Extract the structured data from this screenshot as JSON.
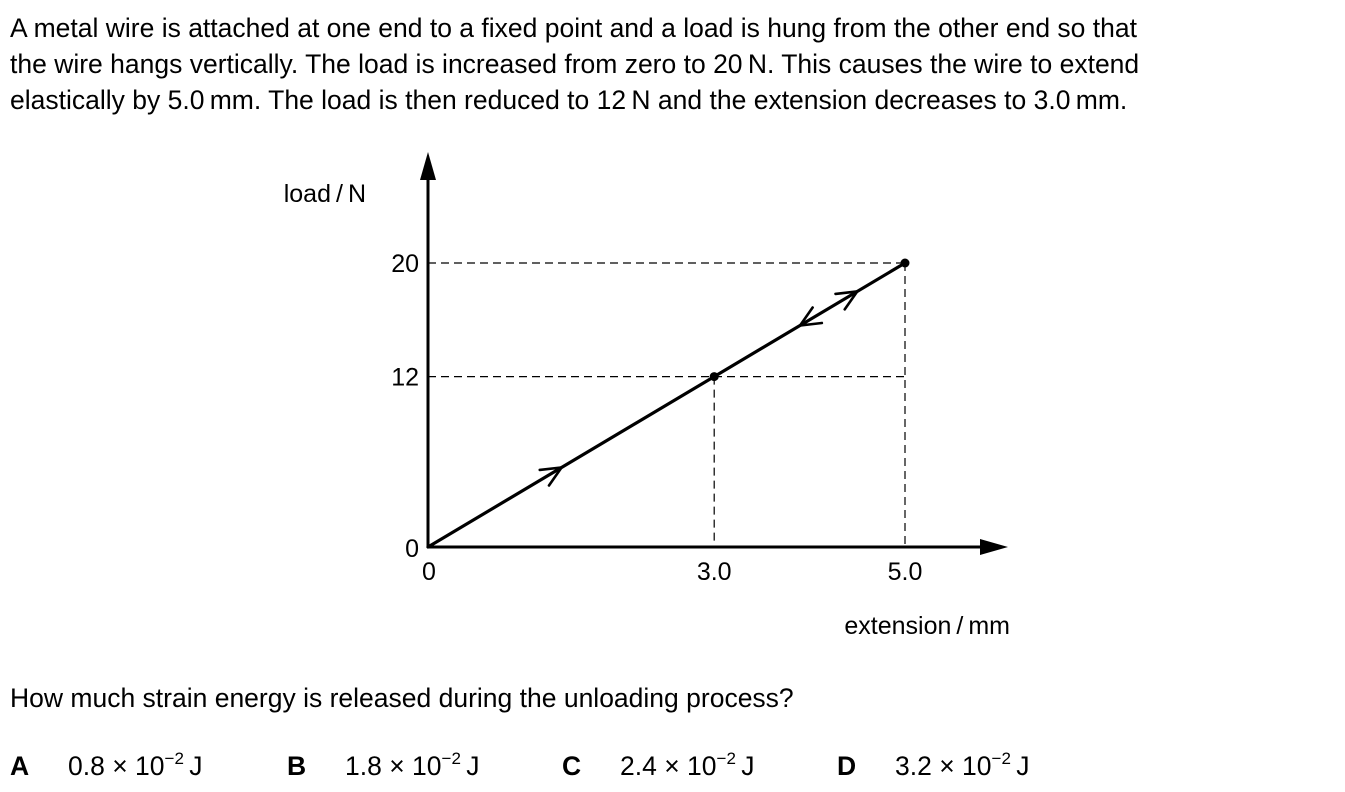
{
  "intro": [
    "A metal wire is attached at one end to a fixed point and a load is hung from the other end so that",
    "the wire hangs vertically. The load is increased from zero to 20 N. This causes the wire to extend",
    "elastically by 5.0 mm. The load is then reduced to 12 N and the extension decreases to 3.0 mm."
  ],
  "question": "How much strain energy is released during the unloading process?",
  "options": [
    {
      "letter": "A",
      "mantissa": "0.8 × 10",
      "exponent": "−2",
      "unit": " J"
    },
    {
      "letter": "B",
      "mantissa": "1.8 × 10",
      "exponent": "−2",
      "unit": " J"
    },
    {
      "letter": "C",
      "mantissa": "2.4 × 10",
      "exponent": "−2",
      "unit": " J"
    },
    {
      "letter": "D",
      "mantissa": "3.2 × 10",
      "exponent": "−2",
      "unit": " J"
    }
  ],
  "chart_data": {
    "type": "line",
    "xlabel": "extension / mm",
    "ylabel": "load / N",
    "x_origin_label": "0",
    "y_origin_label": "0",
    "xticks": [
      {
        "value": 3.0,
        "label": "3.0"
      },
      {
        "value": 5.0,
        "label": "5.0"
      }
    ],
    "yticks": [
      {
        "value": 12,
        "label": "12"
      },
      {
        "value": 20,
        "label": "20"
      }
    ],
    "xlim": [
      0,
      5.0
    ],
    "ylim": [
      0,
      20
    ],
    "grid": false,
    "series": [
      {
        "x": [
          0,
          3.0,
          5.0
        ],
        "y": [
          0,
          12,
          20
        ]
      }
    ],
    "points": [
      {
        "x": 3.0,
        "y": 12
      },
      {
        "x": 5.0,
        "y": 20
      }
    ],
    "guide_lines": [
      {
        "x": 3.0,
        "y": 12
      },
      {
        "x": 5.0,
        "y": 20
      }
    ],
    "direction_arrows": [
      {
        "at_x": 1.4,
        "direction": "loading"
      },
      {
        "at_x": 3.9,
        "direction": "unloading"
      },
      {
        "at_x": 4.5,
        "direction": "loading"
      }
    ]
  }
}
